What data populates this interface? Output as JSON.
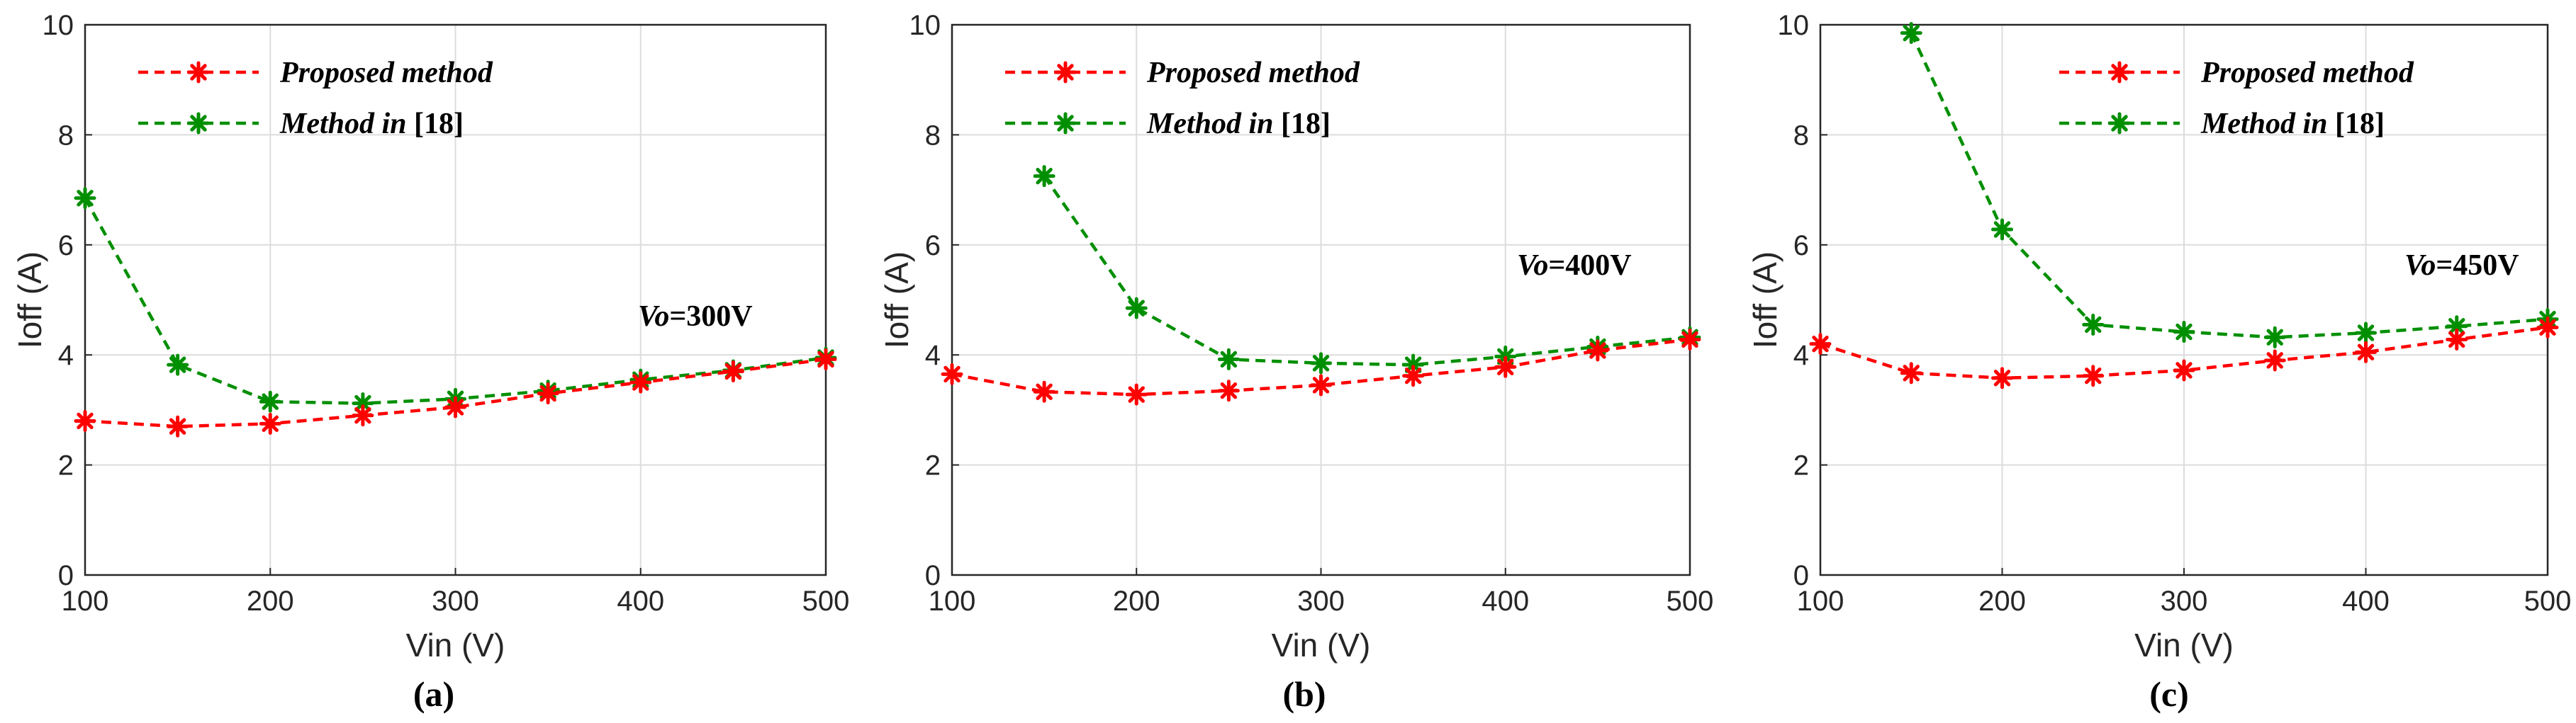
{
  "figure": {
    "panel_labels": [
      "(a)",
      "(b)",
      "(c)"
    ],
    "colors": {
      "proposed": "#ff0000",
      "reference": "#008f00",
      "axis": "#262626",
      "grid": "#dcdcdc"
    }
  },
  "chart_data": [
    {
      "type": "line",
      "panel_label": "(a)",
      "xlabel": "Vin (V)",
      "ylabel": "Ioff (A)",
      "xlim": [
        100,
        500
      ],
      "ylim": [
        0,
        10
      ],
      "xticks": [
        100,
        200,
        300,
        400,
        500
      ],
      "yticks": [
        0,
        2,
        4,
        6,
        8,
        10
      ],
      "grid": true,
      "legend_position": "top-left",
      "annotation": {
        "italic": "Vo",
        "text": "=300V"
      },
      "x": [
        100,
        150,
        200,
        250,
        300,
        350,
        400,
        450,
        500
      ],
      "series": [
        {
          "name": "Proposed method",
          "name_suffix": "",
          "color": "#ff0000",
          "marker": "*",
          "linestyle": "dashed",
          "values": [
            2.8,
            2.7,
            2.75,
            2.9,
            3.05,
            3.3,
            3.5,
            3.7,
            3.92
          ]
        },
        {
          "name": "Method in ",
          "name_suffix": "[18]",
          "color": "#008f00",
          "marker": "*",
          "linestyle": "dashed",
          "values": [
            6.85,
            3.82,
            3.15,
            3.12,
            3.2,
            3.35,
            3.55,
            3.72,
            3.95
          ]
        }
      ]
    },
    {
      "type": "line",
      "panel_label": "(b)",
      "xlabel": "Vin (V)",
      "ylabel": "Ioff (A)",
      "xlim": [
        100,
        500
      ],
      "ylim": [
        0,
        10
      ],
      "xticks": [
        100,
        200,
        300,
        400,
        500
      ],
      "yticks": [
        0,
        2,
        4,
        6,
        8,
        10
      ],
      "grid": true,
      "legend_position": "top-left",
      "annotation": {
        "italic": "Vo",
        "text": "=400V"
      },
      "x": [
        100,
        150,
        200,
        250,
        300,
        350,
        400,
        450,
        500
      ],
      "series": [
        {
          "name": "Proposed method",
          "name_suffix": "",
          "color": "#ff0000",
          "marker": "*",
          "linestyle": "dashed",
          "values": [
            3.65,
            3.33,
            3.28,
            3.35,
            3.45,
            3.62,
            3.78,
            4.08,
            4.28
          ]
        },
        {
          "name": "Method in ",
          "name_suffix": "[18]",
          "color": "#008f00",
          "marker": "*",
          "linestyle": "dashed",
          "values": [
            null,
            7.25,
            4.85,
            3.92,
            3.85,
            3.82,
            3.97,
            4.15,
            4.32
          ]
        }
      ]
    },
    {
      "type": "line",
      "panel_label": "(c)",
      "xlabel": "Vin (V)",
      "ylabel": "Ioff (A)",
      "xlim": [
        100,
        500
      ],
      "ylim": [
        0,
        10
      ],
      "xticks": [
        100,
        200,
        300,
        400,
        500
      ],
      "yticks": [
        0,
        2,
        4,
        6,
        8,
        10
      ],
      "grid": true,
      "legend_position": "top-right",
      "annotation": {
        "italic": "Vo",
        "text": "=450V"
      },
      "x": [
        100,
        150,
        200,
        250,
        300,
        350,
        400,
        450,
        500
      ],
      "series": [
        {
          "name": "Proposed method",
          "name_suffix": "",
          "color": "#ff0000",
          "marker": "*",
          "linestyle": "dashed",
          "values": [
            4.2,
            3.67,
            3.58,
            3.62,
            3.72,
            3.9,
            4.05,
            4.28,
            4.5
          ]
        },
        {
          "name": "Method in ",
          "name_suffix": "[18]",
          "color": "#008f00",
          "marker": "*",
          "linestyle": "dashed",
          "values": [
            null,
            9.85,
            6.28,
            4.55,
            4.42,
            4.32,
            4.4,
            4.52,
            4.65
          ]
        }
      ]
    }
  ]
}
